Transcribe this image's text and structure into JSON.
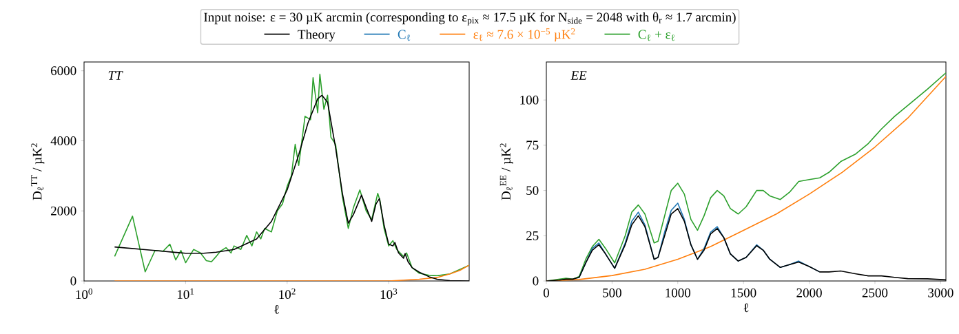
{
  "chart_data": [
    {
      "type": "line",
      "title": "TT",
      "xlabel": "ℓ",
      "ylabel": "D$_{ℓ}$$^{TT}$ / µK$^{2}$",
      "log": "x",
      "xlim": [
        1,
        6200
      ],
      "ylim": [
        0,
        6250
      ],
      "xticks": [
        {
          "value": 1,
          "label": "10$^{0}$"
        },
        {
          "value": 10,
          "label": "10$^{1}$"
        },
        {
          "value": 100,
          "label": "10$^{2}$"
        },
        {
          "value": 1000,
          "label": "10$^{3}$"
        }
      ],
      "yticks": [
        0,
        2000,
        4000,
        6000
      ],
      "series": [
        {
          "color": "#000000",
          "x": [
            2,
            5,
            10,
            15,
            20,
            30,
            50,
            70,
            100,
            130,
            160,
            200,
            220,
            250,
            300,
            350,
            400,
            450,
            540,
            600,
            680,
            750,
            810,
            900,
            1000,
            1100,
            1150,
            1250,
            1400,
            1450,
            1550,
            1700,
            2000,
            2500,
            3000,
            4000,
            6200
          ],
          "values": [
            970,
            870,
            790,
            790,
            820,
            900,
            1200,
            1700,
            2600,
            3600,
            4500,
            5200,
            5300,
            5100,
            3800,
            2500,
            1650,
            1900,
            2450,
            2100,
            1700,
            2200,
            2350,
            1600,
            1050,
            1000,
            1100,
            800,
            650,
            780,
            550,
            380,
            250,
            120,
            50,
            10,
            0
          ]
        },
        {
          "color": "#ff7f0e",
          "x": [
            2,
            100,
            1000,
            2000,
            3000,
            4000,
            5000,
            6200
          ],
          "values": [
            0,
            0,
            0,
            50,
            100,
            200,
            300,
            450
          ]
        },
        {
          "color": "#2ca02c",
          "x": [
            2,
            3,
            4,
            5,
            6,
            7,
            8,
            9,
            10,
            12,
            14,
            16,
            18,
            20,
            22,
            25,
            28,
            30,
            35,
            40,
            45,
            50,
            55,
            60,
            70,
            80,
            90,
            100,
            110,
            120,
            130,
            150,
            170,
            180,
            200,
            210,
            230,
            250,
            270,
            300,
            350,
            400,
            450,
            520,
            600,
            680,
            780,
            820,
            900,
            1000,
            1100,
            1200,
            1400,
            1500,
            1700,
            2000,
            2500,
            3000,
            4000,
            5000,
            6200
          ],
          "values": [
            700,
            1850,
            260,
            870,
            850,
            1050,
            600,
            870,
            520,
            900,
            800,
            580,
            550,
            700,
            850,
            950,
            800,
            1000,
            900,
            1300,
            1000,
            1400,
            1200,
            1500,
            1400,
            2000,
            2200,
            2700,
            3000,
            3900,
            3300,
            4700,
            4600,
            5800,
            4800,
            5900,
            4900,
            5300,
            4100,
            3900,
            2400,
            1500,
            2100,
            2600,
            2000,
            1750,
            2500,
            2300,
            1500,
            1000,
            1150,
            900,
            700,
            800,
            380,
            220,
            160,
            150,
            200,
            null,
            450
          ]
        }
      ]
    },
    {
      "type": "line",
      "title": "EE",
      "xlabel": "ℓ",
      "ylabel": "D$_{ℓ}$$^{EE}$ / µK$^{2}$",
      "xlim": [
        0,
        3040
      ],
      "ylim": [
        0,
        121
      ],
      "xticks": [
        0,
        500,
        1000,
        1500,
        2000,
        2500,
        3000
      ],
      "yticks": [
        0,
        25,
        50,
        75,
        100
      ],
      "legend": "top",
      "legend_title": "Input noise: ε = 30 µK arcmin (corresponding to ε$_{pix}$ ≈ 17.5 µK for N$_{side}$ = 2048 with θ$_{r}$ ≈ 1.7 arcmin)",
      "series": [
        {
          "name": "Theory",
          "color": "#000000",
          "x": [
            0,
            100,
            150,
            200,
            250,
            300,
            350,
            400,
            450,
            520,
            600,
            650,
            700,
            750,
            820,
            850,
            900,
            950,
            1000,
            1050,
            1100,
            1150,
            1200,
            1250,
            1300,
            1350,
            1400,
            1460,
            1520,
            1600,
            1650,
            1700,
            1780,
            1850,
            1920,
            2000,
            2080,
            2150,
            2240,
            2350,
            2450,
            2550,
            2650,
            2750,
            2900,
            3040
          ],
          "values": [
            0,
            0.5,
            1,
            1,
            2,
            10,
            17,
            20,
            15,
            7,
            20,
            31,
            36,
            30,
            12,
            13,
            25,
            37,
            40,
            33,
            20,
            12,
            17,
            26,
            29,
            24,
            15,
            11,
            13,
            19.5,
            17,
            12,
            7.5,
            9,
            10.5,
            8,
            5,
            5,
            5.5,
            4,
            2.8,
            2.8,
            2,
            1.3,
            1.2,
            0.6
          ]
        },
        {
          "name": "C$_{ℓ}$",
          "color": "#1f77b4",
          "x": [
            250,
            300,
            350,
            400,
            450,
            520,
            600,
            650,
            700,
            750,
            820,
            850,
            900,
            950,
            1000,
            1050,
            1100,
            1150,
            1200,
            1250,
            1300,
            1350,
            1400,
            1460,
            1520,
            1600,
            1650,
            1700,
            1780,
            1850,
            1920,
            2000,
            2080
          ],
          "values": [
            2,
            10,
            18,
            21,
            15,
            7,
            21,
            33,
            38,
            31,
            12,
            13,
            27,
            39,
            43,
            34,
            20,
            12,
            18,
            27,
            30,
            24,
            15,
            11,
            13,
            20,
            17,
            12,
            7.5,
            9,
            11,
            8,
            5
          ]
        },
        {
          "name": "ε$_{ℓ}$ ≈ 7.6 × 10$^{−5}$ µK$^{2}$",
          "color": "#ff7f0e",
          "x": [
            0,
            250,
            500,
            750,
            1000,
            1250,
            1500,
            1750,
            2000,
            2250,
            2500,
            2750,
            3040
          ],
          "values": [
            0,
            0.8,
            3,
            6.5,
            12,
            19,
            28,
            37,
            48,
            60,
            74,
            90,
            113
          ]
        },
        {
          "name": "C$_{ℓ}$ + ε$_{ℓ}$",
          "color": "#2ca02c",
          "x": [
            0,
            150,
            200,
            250,
            300,
            350,
            400,
            450,
            520,
            600,
            650,
            700,
            750,
            820,
            850,
            900,
            950,
            1000,
            1050,
            1100,
            1150,
            1200,
            1250,
            1300,
            1350,
            1400,
            1460,
            1520,
            1600,
            1650,
            1700,
            1780,
            1850,
            1920,
            2000,
            2080,
            2150,
            2240,
            2350,
            2450,
            2550,
            2650,
            2750,
            2900,
            3040
          ],
          "values": [
            0,
            1.5,
            1,
            2.5,
            12,
            19,
            23,
            18,
            10,
            25,
            38,
            42,
            37,
            21,
            22,
            36,
            50,
            54,
            48,
            34,
            28,
            36,
            46,
            50,
            47,
            40,
            37,
            41,
            50,
            50,
            47,
            45,
            49,
            55,
            56,
            57,
            60,
            66,
            70,
            76,
            84,
            91,
            97,
            106,
            115
          ]
        }
      ]
    }
  ]
}
